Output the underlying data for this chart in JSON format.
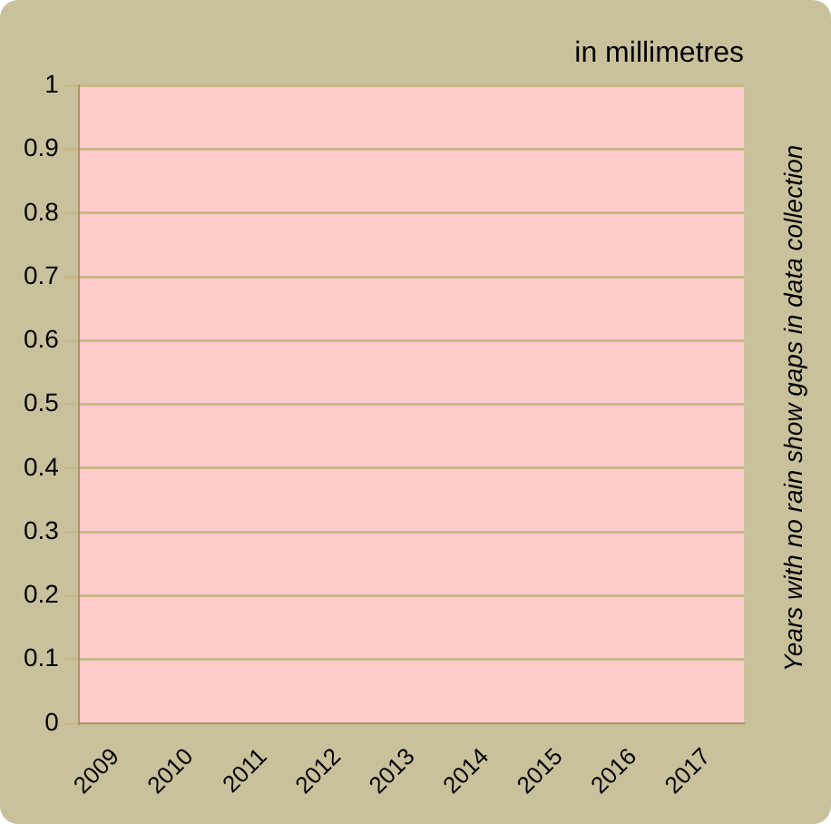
{
  "chart_data": {
    "type": "bar",
    "title": "in millimetres",
    "categories": [
      "2009",
      "2010",
      "2011",
      "2012",
      "2013",
      "2014",
      "2015",
      "2016",
      "2017"
    ],
    "values": [
      null,
      null,
      null,
      null,
      null,
      null,
      null,
      null,
      null
    ],
    "ylim": [
      0,
      1
    ],
    "yticks": [
      0,
      0.1,
      0.2,
      0.3,
      0.4,
      0.5,
      0.6,
      0.7,
      0.8,
      0.9,
      1
    ],
    "grid": "y",
    "annotations": [
      "Years with no rain show gaps in data collection"
    ]
  }
}
